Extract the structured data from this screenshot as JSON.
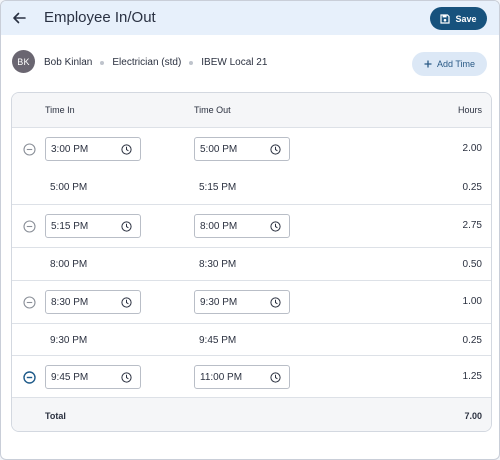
{
  "header": {
    "title": "Employee In/Out",
    "save_label": "Save"
  },
  "employee": {
    "initials": "BK",
    "name": "Bob Kinlan",
    "role": "Electrician (std)",
    "union": "IBEW Local 21",
    "add_time_label": "Add Time"
  },
  "table": {
    "columns": {
      "time_in": "Time In",
      "time_out": "Time Out",
      "hours": "Hours"
    },
    "rows": [
      {
        "kind": "entry",
        "time_in": "3:00 PM",
        "time_out": "5:00 PM",
        "hours": "2.00"
      },
      {
        "kind": "gap",
        "time_in": "5:00 PM",
        "time_out": "5:15 PM",
        "hours": "0.25"
      },
      {
        "kind": "entry",
        "time_in": "5:15 PM",
        "time_out": "8:00 PM",
        "hours": "2.75"
      },
      {
        "kind": "gap",
        "time_in": "8:00 PM",
        "time_out": "8:30 PM",
        "hours": "0.50"
      },
      {
        "kind": "entry",
        "time_in": "8:30 PM",
        "time_out": "9:30 PM",
        "hours": "1.00"
      },
      {
        "kind": "gap",
        "time_in": "9:30 PM",
        "time_out": "9:45 PM",
        "hours": "0.25"
      },
      {
        "kind": "entry",
        "time_in": "9:45 PM",
        "time_out": "11:00 PM",
        "hours": "1.25",
        "remove_active": true
      }
    ],
    "total_label": "Total",
    "total_value": "7.00"
  },
  "colors": {
    "accent": "#17527d",
    "header_bg": "#e7f0fb",
    "add_time_bg": "#dce8f6",
    "remove_icon": "#8a8f98",
    "remove_icon_active": "#1f5b8a"
  },
  "icons": {
    "back": "arrow-left-icon",
    "save": "floppy-disk-icon",
    "add": "plus-icon",
    "remove": "minus-circle-icon",
    "clock": "clock-icon"
  }
}
